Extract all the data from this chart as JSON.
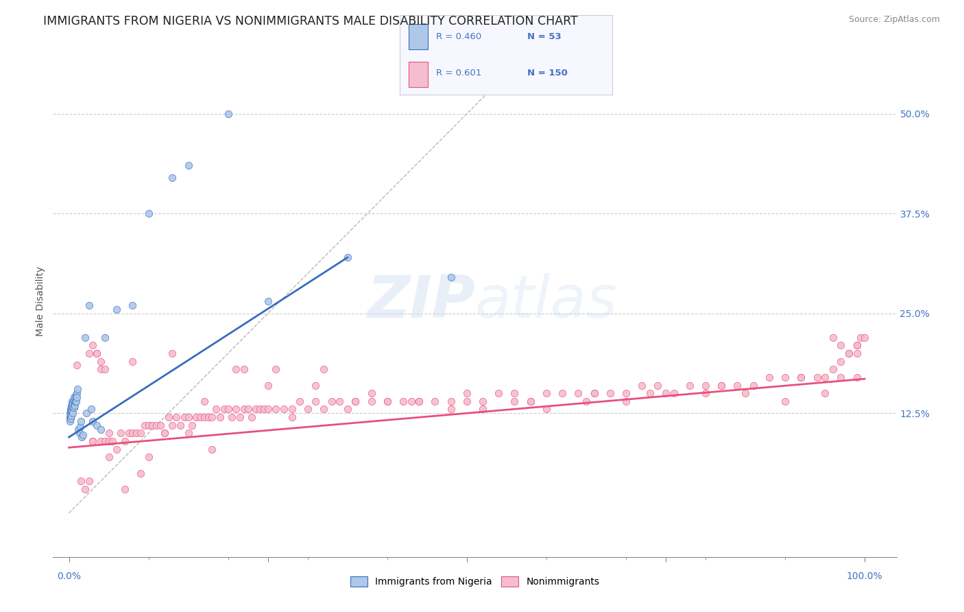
{
  "title": "IMMIGRANTS FROM NIGERIA VS NONIMMIGRANTS MALE DISABILITY CORRELATION CHART",
  "source": "Source: ZipAtlas.com",
  "ylabel_label": "Male Disability",
  "legend_entries": [
    {
      "label": "Immigrants from Nigeria",
      "R": "0.460",
      "N": "53",
      "color": "#adc8e8",
      "line_color": "#3a6bbf"
    },
    {
      "label": "Nonimmigrants",
      "R": "0.601",
      "N": "150",
      "color": "#f5bdd0",
      "line_color": "#e8507a"
    }
  ],
  "watermark_zip": "ZIP",
  "watermark_atlas": "atlas",
  "background_color": "#ffffff",
  "grid_color": "#cccccc",
  "title_fontsize": 12.5,
  "axis_label_fontsize": 10,
  "tick_fontsize": 10,
  "source_fontsize": 9,
  "nigeria_scatter": {
    "x": [
      0.001,
      0.001,
      0.001,
      0.001,
      0.002,
      0.002,
      0.002,
      0.002,
      0.003,
      0.003,
      0.003,
      0.003,
      0.004,
      0.004,
      0.004,
      0.005,
      0.005,
      0.005,
      0.006,
      0.006,
      0.006,
      0.007,
      0.007,
      0.008,
      0.008,
      0.009,
      0.009,
      0.01,
      0.01,
      0.011,
      0.012,
      0.013,
      0.014,
      0.015,
      0.016,
      0.018,
      0.02,
      0.022,
      0.025,
      0.028,
      0.03,
      0.035,
      0.04,
      0.045,
      0.06,
      0.08,
      0.1,
      0.13,
      0.15,
      0.2,
      0.25,
      0.35,
      0.48
    ],
    "y": [
      0.125,
      0.12,
      0.118,
      0.115,
      0.13,
      0.128,
      0.122,
      0.118,
      0.135,
      0.132,
      0.128,
      0.122,
      0.14,
      0.135,
      0.128,
      0.138,
      0.132,
      0.125,
      0.145,
      0.14,
      0.132,
      0.138,
      0.135,
      0.145,
      0.14,
      0.148,
      0.14,
      0.15,
      0.145,
      0.155,
      0.105,
      0.1,
      0.108,
      0.115,
      0.095,
      0.098,
      0.22,
      0.125,
      0.26,
      0.13,
      0.115,
      0.11,
      0.105,
      0.22,
      0.255,
      0.26,
      0.375,
      0.42,
      0.435,
      0.5,
      0.265,
      0.32,
      0.295
    ]
  },
  "nigeria_line": {
    "x": [
      0.0,
      0.35
    ],
    "y": [
      0.095,
      0.32
    ]
  },
  "nonimm_scatter": {
    "x": [
      0.01,
      0.015,
      0.02,
      0.025,
      0.025,
      0.03,
      0.03,
      0.035,
      0.035,
      0.04,
      0.04,
      0.045,
      0.045,
      0.05,
      0.05,
      0.055,
      0.06,
      0.065,
      0.07,
      0.075,
      0.08,
      0.085,
      0.09,
      0.095,
      0.1,
      0.1,
      0.105,
      0.11,
      0.115,
      0.12,
      0.125,
      0.13,
      0.135,
      0.14,
      0.145,
      0.15,
      0.155,
      0.16,
      0.165,
      0.17,
      0.175,
      0.18,
      0.185,
      0.19,
      0.195,
      0.2,
      0.205,
      0.21,
      0.215,
      0.22,
      0.225,
      0.23,
      0.235,
      0.24,
      0.245,
      0.25,
      0.26,
      0.27,
      0.28,
      0.29,
      0.3,
      0.31,
      0.32,
      0.33,
      0.34,
      0.35,
      0.36,
      0.38,
      0.4,
      0.42,
      0.44,
      0.46,
      0.48,
      0.5,
      0.52,
      0.54,
      0.56,
      0.58,
      0.6,
      0.62,
      0.64,
      0.66,
      0.68,
      0.7,
      0.72,
      0.74,
      0.76,
      0.78,
      0.8,
      0.82,
      0.84,
      0.86,
      0.88,
      0.9,
      0.92,
      0.94,
      0.95,
      0.96,
      0.97,
      0.98,
      0.03,
      0.05,
      0.07,
      0.09,
      0.12,
      0.15,
      0.18,
      0.22,
      0.25,
      0.28,
      0.32,
      0.36,
      0.4,
      0.44,
      0.48,
      0.52,
      0.56,
      0.6,
      0.65,
      0.7,
      0.75,
      0.8,
      0.85,
      0.9,
      0.95,
      0.99,
      0.04,
      0.08,
      0.13,
      0.17,
      0.21,
      0.26,
      0.31,
      0.38,
      0.43,
      0.5,
      0.58,
      0.66,
      0.73,
      0.82,
      0.92,
      0.97,
      0.99,
      0.99,
      0.98,
      0.97,
      0.96,
      0.99,
      0.995,
      1.0
    ],
    "y": [
      0.185,
      0.04,
      0.03,
      0.04,
      0.2,
      0.21,
      0.09,
      0.2,
      0.2,
      0.09,
      0.18,
      0.09,
      0.18,
      0.09,
      0.1,
      0.09,
      0.08,
      0.1,
      0.09,
      0.1,
      0.1,
      0.1,
      0.1,
      0.11,
      0.11,
      0.07,
      0.11,
      0.11,
      0.11,
      0.1,
      0.12,
      0.11,
      0.12,
      0.11,
      0.12,
      0.12,
      0.11,
      0.12,
      0.12,
      0.12,
      0.12,
      0.12,
      0.13,
      0.12,
      0.13,
      0.13,
      0.12,
      0.13,
      0.12,
      0.13,
      0.13,
      0.12,
      0.13,
      0.13,
      0.13,
      0.13,
      0.13,
      0.13,
      0.13,
      0.14,
      0.13,
      0.14,
      0.13,
      0.14,
      0.14,
      0.13,
      0.14,
      0.14,
      0.14,
      0.14,
      0.14,
      0.14,
      0.14,
      0.15,
      0.14,
      0.15,
      0.15,
      0.14,
      0.15,
      0.15,
      0.15,
      0.15,
      0.15,
      0.15,
      0.16,
      0.16,
      0.15,
      0.16,
      0.16,
      0.16,
      0.16,
      0.16,
      0.17,
      0.17,
      0.17,
      0.17,
      0.17,
      0.18,
      0.17,
      0.2,
      0.09,
      0.07,
      0.03,
      0.05,
      0.1,
      0.1,
      0.08,
      0.18,
      0.16,
      0.12,
      0.18,
      0.14,
      0.14,
      0.14,
      0.13,
      0.13,
      0.14,
      0.13,
      0.14,
      0.14,
      0.15,
      0.15,
      0.15,
      0.14,
      0.15,
      0.17,
      0.19,
      0.19,
      0.2,
      0.14,
      0.18,
      0.18,
      0.16,
      0.15,
      0.14,
      0.14,
      0.14,
      0.15,
      0.15,
      0.16,
      0.17,
      0.19,
      0.2,
      0.21,
      0.2,
      0.21,
      0.22,
      0.21,
      0.22,
      0.22
    ]
  },
  "nonimm_line": {
    "x": [
      0.0,
      1.0
    ],
    "y": [
      0.082,
      0.168
    ]
  },
  "diagonal_line": {
    "x": [
      0.0,
      0.55
    ],
    "y": [
      0.0,
      0.55
    ]
  },
  "xlim": [
    -0.02,
    1.04
  ],
  "ylim": [
    -0.055,
    0.585
  ],
  "ytick_positions": [
    0.125,
    0.25,
    0.375,
    0.5
  ],
  "ytick_labels": [
    "12.5%",
    "25.0%",
    "37.5%",
    "50.0%"
  ],
  "xtick_positions": [
    0.0,
    0.25,
    0.5,
    0.75,
    1.0
  ],
  "xtick_minor_positions": [
    0.1,
    0.2,
    0.3,
    0.4,
    0.6,
    0.7,
    0.8,
    0.9
  ]
}
